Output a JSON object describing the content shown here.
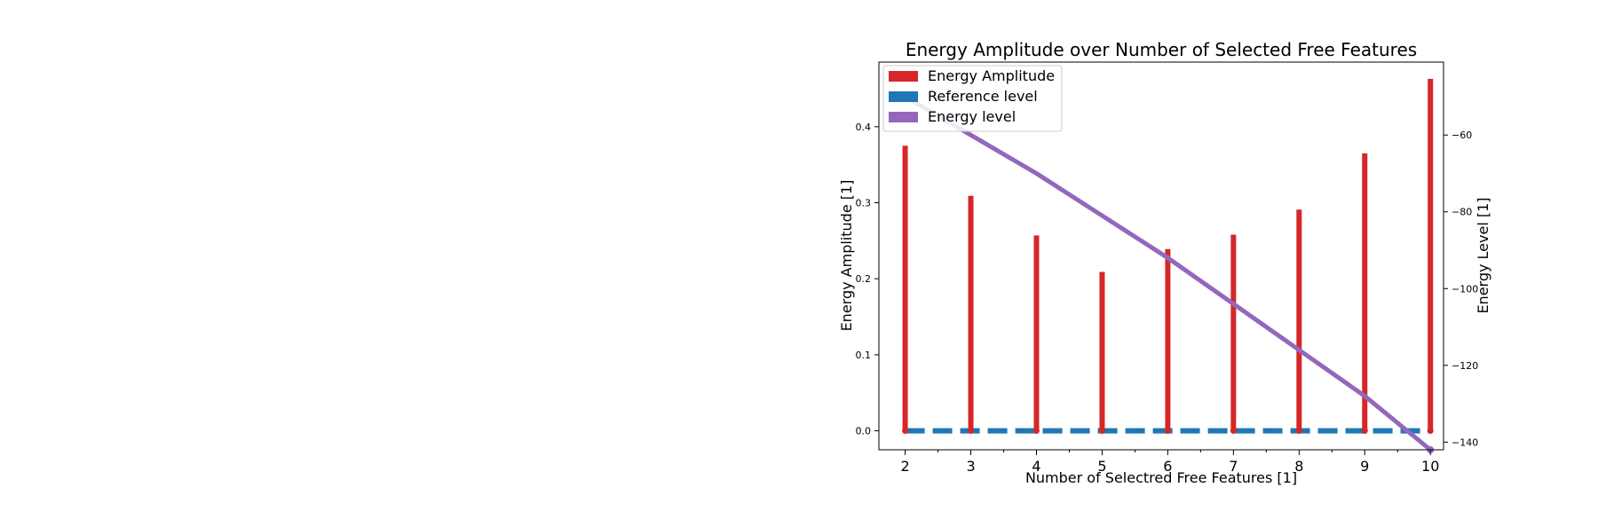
{
  "chart_data": {
    "type": "bar",
    "title": "Energy Amplitude over Number of Selected Free Features",
    "xlabel": "Number of Selectred Free Features [1]",
    "ylabel": "Energy Amplitude [1]",
    "y2label": "Energy Level [1]",
    "x": [
      2,
      3,
      4,
      5,
      6,
      7,
      8,
      9,
      10
    ],
    "xlim": [
      1.6,
      10.2
    ],
    "ylim": [
      -0.025,
      0.485
    ],
    "y2lim": [
      -142,
      -41
    ],
    "yticks": [
      "0.0",
      "0.1",
      "0.2",
      "0.3",
      "0.4"
    ],
    "y2ticks": [
      "−60",
      "−80",
      "−100",
      "−120",
      "−140"
    ],
    "xticks": [
      "2",
      "3",
      "4",
      "5",
      "6",
      "7",
      "8",
      "9",
      "10"
    ],
    "legend_position": "top-left",
    "grid": false,
    "series": [
      {
        "name": "Energy Amplitude",
        "kind": "stem",
        "axis": "left",
        "color": "#d62728",
        "values": [
          0.375,
          0.309,
          0.257,
          0.209,
          0.239,
          0.258,
          0.291,
          0.365,
          0.463
        ]
      },
      {
        "name": "Reference level",
        "kind": "dashed-line",
        "axis": "left",
        "color": "#1f77b4",
        "values": [
          0,
          0,
          0,
          0,
          0,
          0,
          0,
          0,
          0
        ]
      },
      {
        "name": "Energy level",
        "kind": "line",
        "axis": "right",
        "color": "#9467bd",
        "values": [
          -50,
          -60,
          -70,
          -81,
          -92,
          -104,
          -116,
          -128,
          -142
        ]
      }
    ]
  }
}
